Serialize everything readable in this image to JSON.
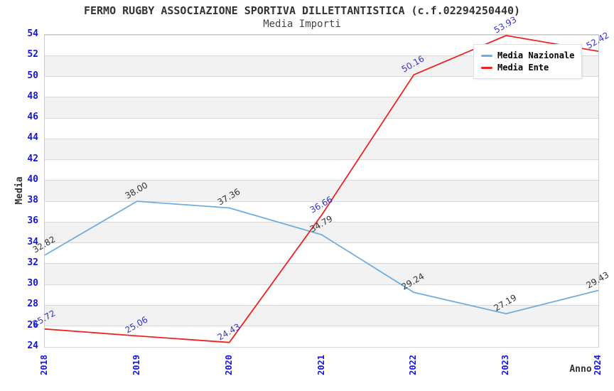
{
  "header": {
    "title": "FERMO RUGBY ASSOCIAZIONE SPORTIVA DILLETTANTISTICA (c.f.02294250440)",
    "subtitle": "Media Importi"
  },
  "chart_data": {
    "type": "line",
    "x": [
      2018,
      2019,
      2020,
      2021,
      2022,
      2023,
      2024
    ],
    "xlabel": "Anno",
    "ylabel": "Media",
    "ylim": [
      24,
      54
    ],
    "y_ticks": [
      54,
      52,
      50,
      48,
      46,
      44,
      42,
      40,
      38,
      36,
      34,
      32,
      30,
      28,
      26,
      24
    ],
    "grid": "horizontal-bands-alternating",
    "legend_position": "top-right",
    "value_decimals": 2,
    "series": [
      {
        "name": "Media Nazionale",
        "color": "#6FAEE0",
        "label_color": "#333333",
        "values": [
          32.82,
          38.0,
          37.36,
          34.79,
          29.24,
          27.19,
          29.43
        ]
      },
      {
        "name": "Media Ente",
        "color": "#EE2222",
        "label_color": "#3434C8",
        "values": [
          25.72,
          25.06,
          24.43,
          36.66,
          50.16,
          53.93,
          52.42
        ]
      }
    ]
  },
  "colors": {
    "tick_label": "#1414DC",
    "band_alt": "#F2F2F2",
    "gridline": "#D9D9D9",
    "plot_border": "#CCCCCC",
    "title": "#333333",
    "background": "#FFFFFF"
  }
}
